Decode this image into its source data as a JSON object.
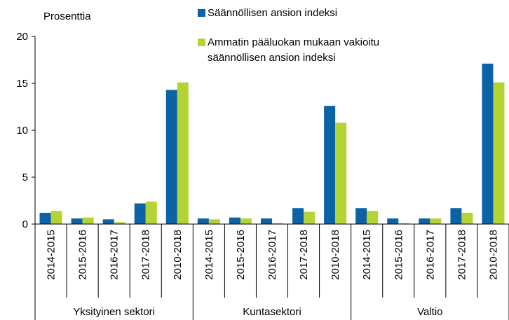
{
  "chart_data": {
    "type": "bar",
    "ylabel": "Prosenttia",
    "categories": [
      "2014-2015",
      "2015-2016",
      "2016-2017",
      "2017-2018",
      "2010-2018",
      "2014-2015",
      "2015-2016",
      "2016-2017",
      "2017-2018",
      "2010-2018",
      "2014-2015",
      "2015-2016",
      "2016-2017",
      "2017-2018",
      "2010-2018"
    ],
    "groups": [
      "Yksityinen sektori",
      "Kuntasektori",
      "Valtio"
    ],
    "series": [
      {
        "name": "Säännöllisen ansion indeksi",
        "color": "#0b62a4",
        "values": [
          1.2,
          0.6,
          0.5,
          2.2,
          14.3,
          0.6,
          0.7,
          0.6,
          1.7,
          12.6,
          1.7,
          0.6,
          0.6,
          1.7,
          17.1
        ]
      },
      {
        "name": "Ammatin pääluokan mukaan vakioitu säännöllisen ansion indeksi",
        "color": "#b4d335",
        "values": [
          1.4,
          0.7,
          0.2,
          2.4,
          15.1,
          0.5,
          0.6,
          0.1,
          1.3,
          10.8,
          1.4,
          0.1,
          0.6,
          1.2,
          15.1
        ]
      }
    ],
    "ylim": [
      0,
      20
    ],
    "yticks": [
      0,
      5,
      10,
      15,
      20
    ]
  }
}
